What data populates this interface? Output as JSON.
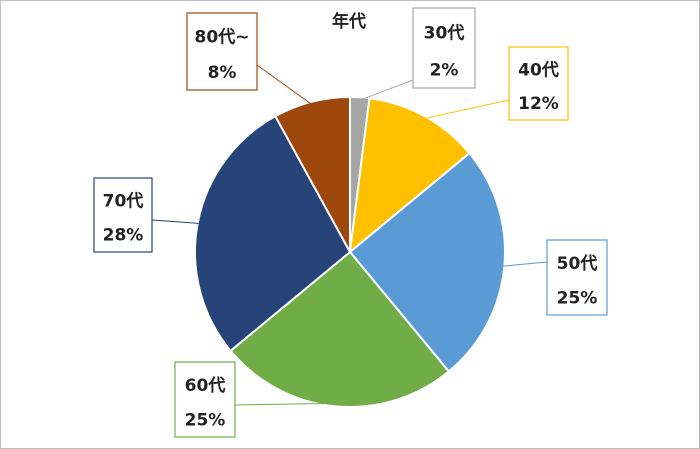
{
  "chart_data": {
    "type": "pie",
    "title": "年代",
    "categories": [
      "30代",
      "40代",
      "50代",
      "60代",
      "70代",
      "80代~"
    ],
    "values": [
      2,
      12,
      25,
      25,
      28,
      8
    ],
    "value_labels": [
      "2%",
      "12%",
      "25%",
      "25%",
      "28%",
      "8%"
    ],
    "colors": [
      "#a5a5a5",
      "#ffc000",
      "#5b9bd5",
      "#70ad47",
      "#264478",
      "#9e480e"
    ]
  }
}
